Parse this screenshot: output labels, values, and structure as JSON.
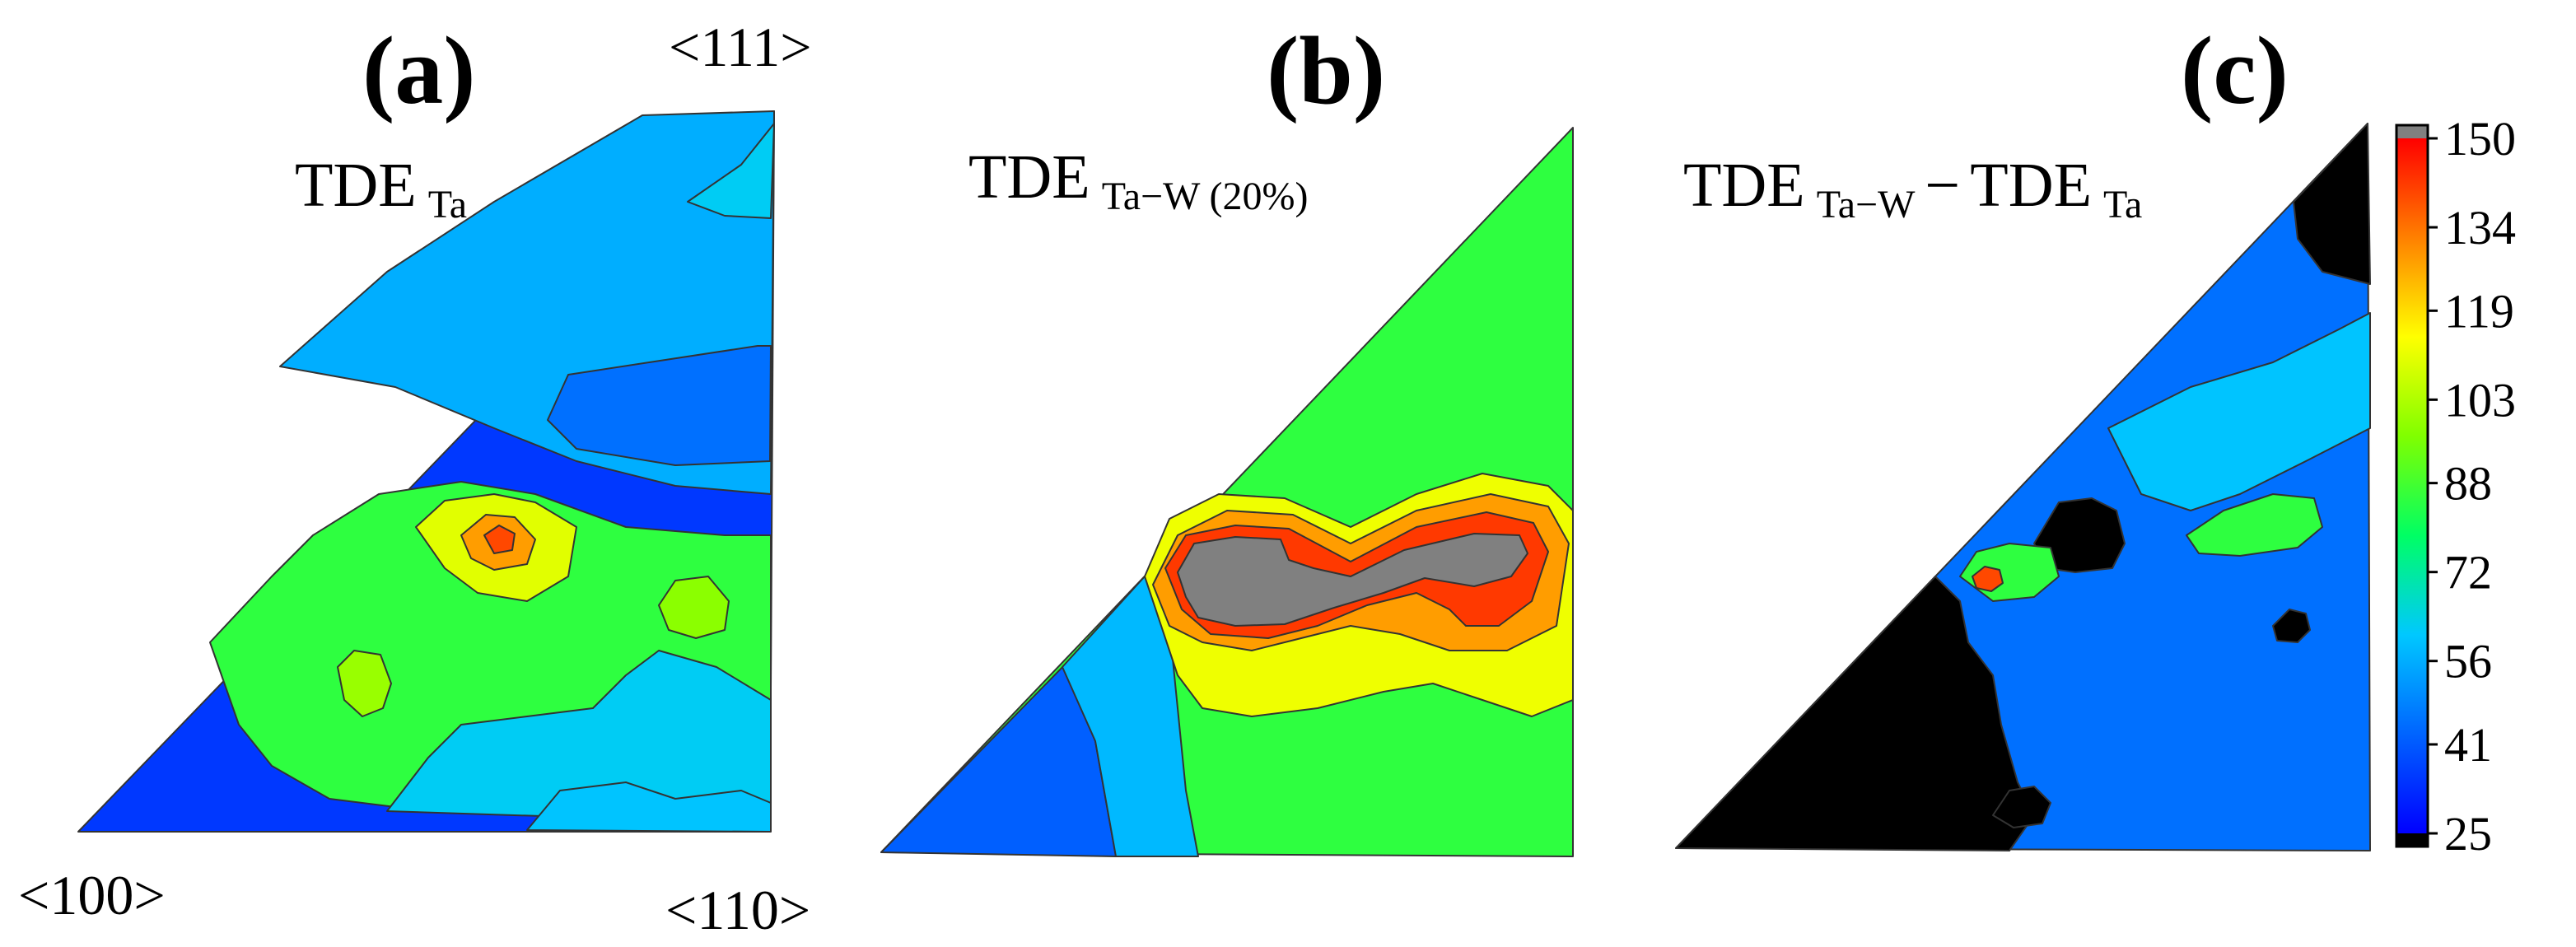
{
  "chart_data": [
    {
      "panel_label": "(a)",
      "type": "contour",
      "title": {
        "main": "TDE",
        "subscript": "Ta"
      },
      "corner_labels": {
        "top_right": "<111>",
        "bottom_left": "<100>",
        "bottom_right": "<110>"
      },
      "value_range": [
        25,
        150
      ],
      "regions": [
        {
          "name": "base",
          "level": 35
        },
        {
          "name": "upper-band",
          "level": 56
        },
        {
          "name": "top-dark-patch",
          "level": 45
        },
        {
          "name": "top-corner-cyan",
          "level": 62
        },
        {
          "name": "green-body",
          "level": 85
        },
        {
          "name": "lower-cyan-tongue",
          "level": 62
        },
        {
          "name": "bottom-cyan",
          "level": 60
        },
        {
          "name": "peak-ring-yellow",
          "level": 110
        },
        {
          "name": "peak-ring-orange",
          "level": 128
        },
        {
          "name": "peak-core",
          "level": 140
        },
        {
          "name": "left-island-yellow",
          "level": 100
        },
        {
          "name": "right-island-yellow",
          "level": 98
        }
      ]
    },
    {
      "panel_label": "(b)",
      "type": "contour",
      "title": {
        "main": "TDE",
        "subscript": "Ta−W (20%)"
      },
      "value_range": [
        25,
        150
      ],
      "regions": [
        {
          "name": "base-green",
          "level": 85
        },
        {
          "name": "left-blue-corner",
          "level": 42
        },
        {
          "name": "left-cyan-band",
          "level": 58
        },
        {
          "name": "yellow-zone",
          "level": 112
        },
        {
          "name": "orange-zone",
          "level": 128
        },
        {
          "name": "red-ridge",
          "level": 142
        },
        {
          "name": "saturated-core",
          "level": 155
        }
      ]
    },
    {
      "panel_label": "(c)",
      "type": "contour",
      "title": {
        "main": "TDE",
        "subscript": "Ta−W",
        "minus": "−",
        "main2": "TDE",
        "subscript2": "Ta"
      },
      "value_range": [
        25,
        150
      ],
      "regions": [
        {
          "name": "base-blue",
          "level": 45
        },
        {
          "name": "black-lower-left",
          "level": 20
        },
        {
          "name": "black-top-corner",
          "level": 20
        },
        {
          "name": "black-hole-1",
          "level": 20
        },
        {
          "name": "black-hole-2",
          "level": 20
        },
        {
          "name": "black-hole-3",
          "level": 20
        },
        {
          "name": "cyan-streak",
          "level": 60
        },
        {
          "name": "green-island-right",
          "level": 85
        },
        {
          "name": "green-island-left",
          "level": 85
        },
        {
          "name": "peak-left",
          "level": 140
        }
      ]
    }
  ],
  "colorbar": {
    "min": 25,
    "max": 150,
    "tick_labels": [
      "150",
      "134",
      "119",
      "103",
      "88",
      "72",
      "56",
      "41",
      "25"
    ],
    "tick_values": [
      150,
      134,
      119,
      103,
      88,
      72,
      56,
      41,
      25
    ],
    "over_color": "#808080",
    "under_color": "#000000"
  },
  "colors": {
    "stops": [
      "#0000ff",
      "#0064ff",
      "#00c8ff",
      "#00ff64",
      "#80ff00",
      "#ffff00",
      "#ff8000",
      "#ff0000"
    ]
  }
}
